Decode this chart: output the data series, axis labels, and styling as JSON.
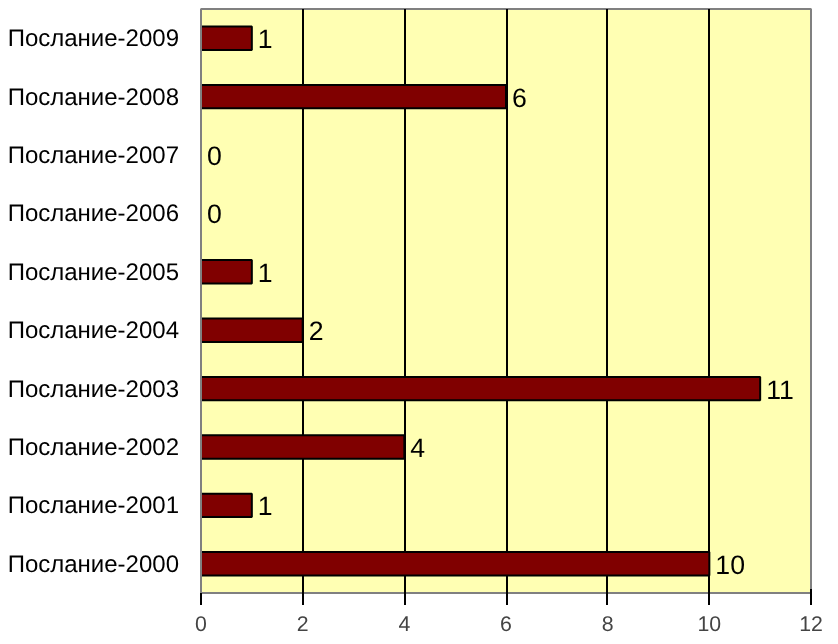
{
  "chart_data": {
    "type": "bar",
    "orientation": "horizontal",
    "categories": [
      "Послание-2009",
      "Послание-2008",
      "Послание-2007",
      "Послание-2006",
      "Послание-2005",
      "Послание-2004",
      "Послание-2003",
      "Послание-2002",
      "Послание-2001",
      "Послание-2000"
    ],
    "values": [
      1,
      6,
      0,
      0,
      1,
      2,
      11,
      4,
      1,
      10
    ],
    "color": "#800000",
    "xlim": [
      0,
      12
    ],
    "xticks": [
      0,
      2,
      4,
      6,
      8,
      10,
      12
    ],
    "grid": "x",
    "data_labels": true
  }
}
